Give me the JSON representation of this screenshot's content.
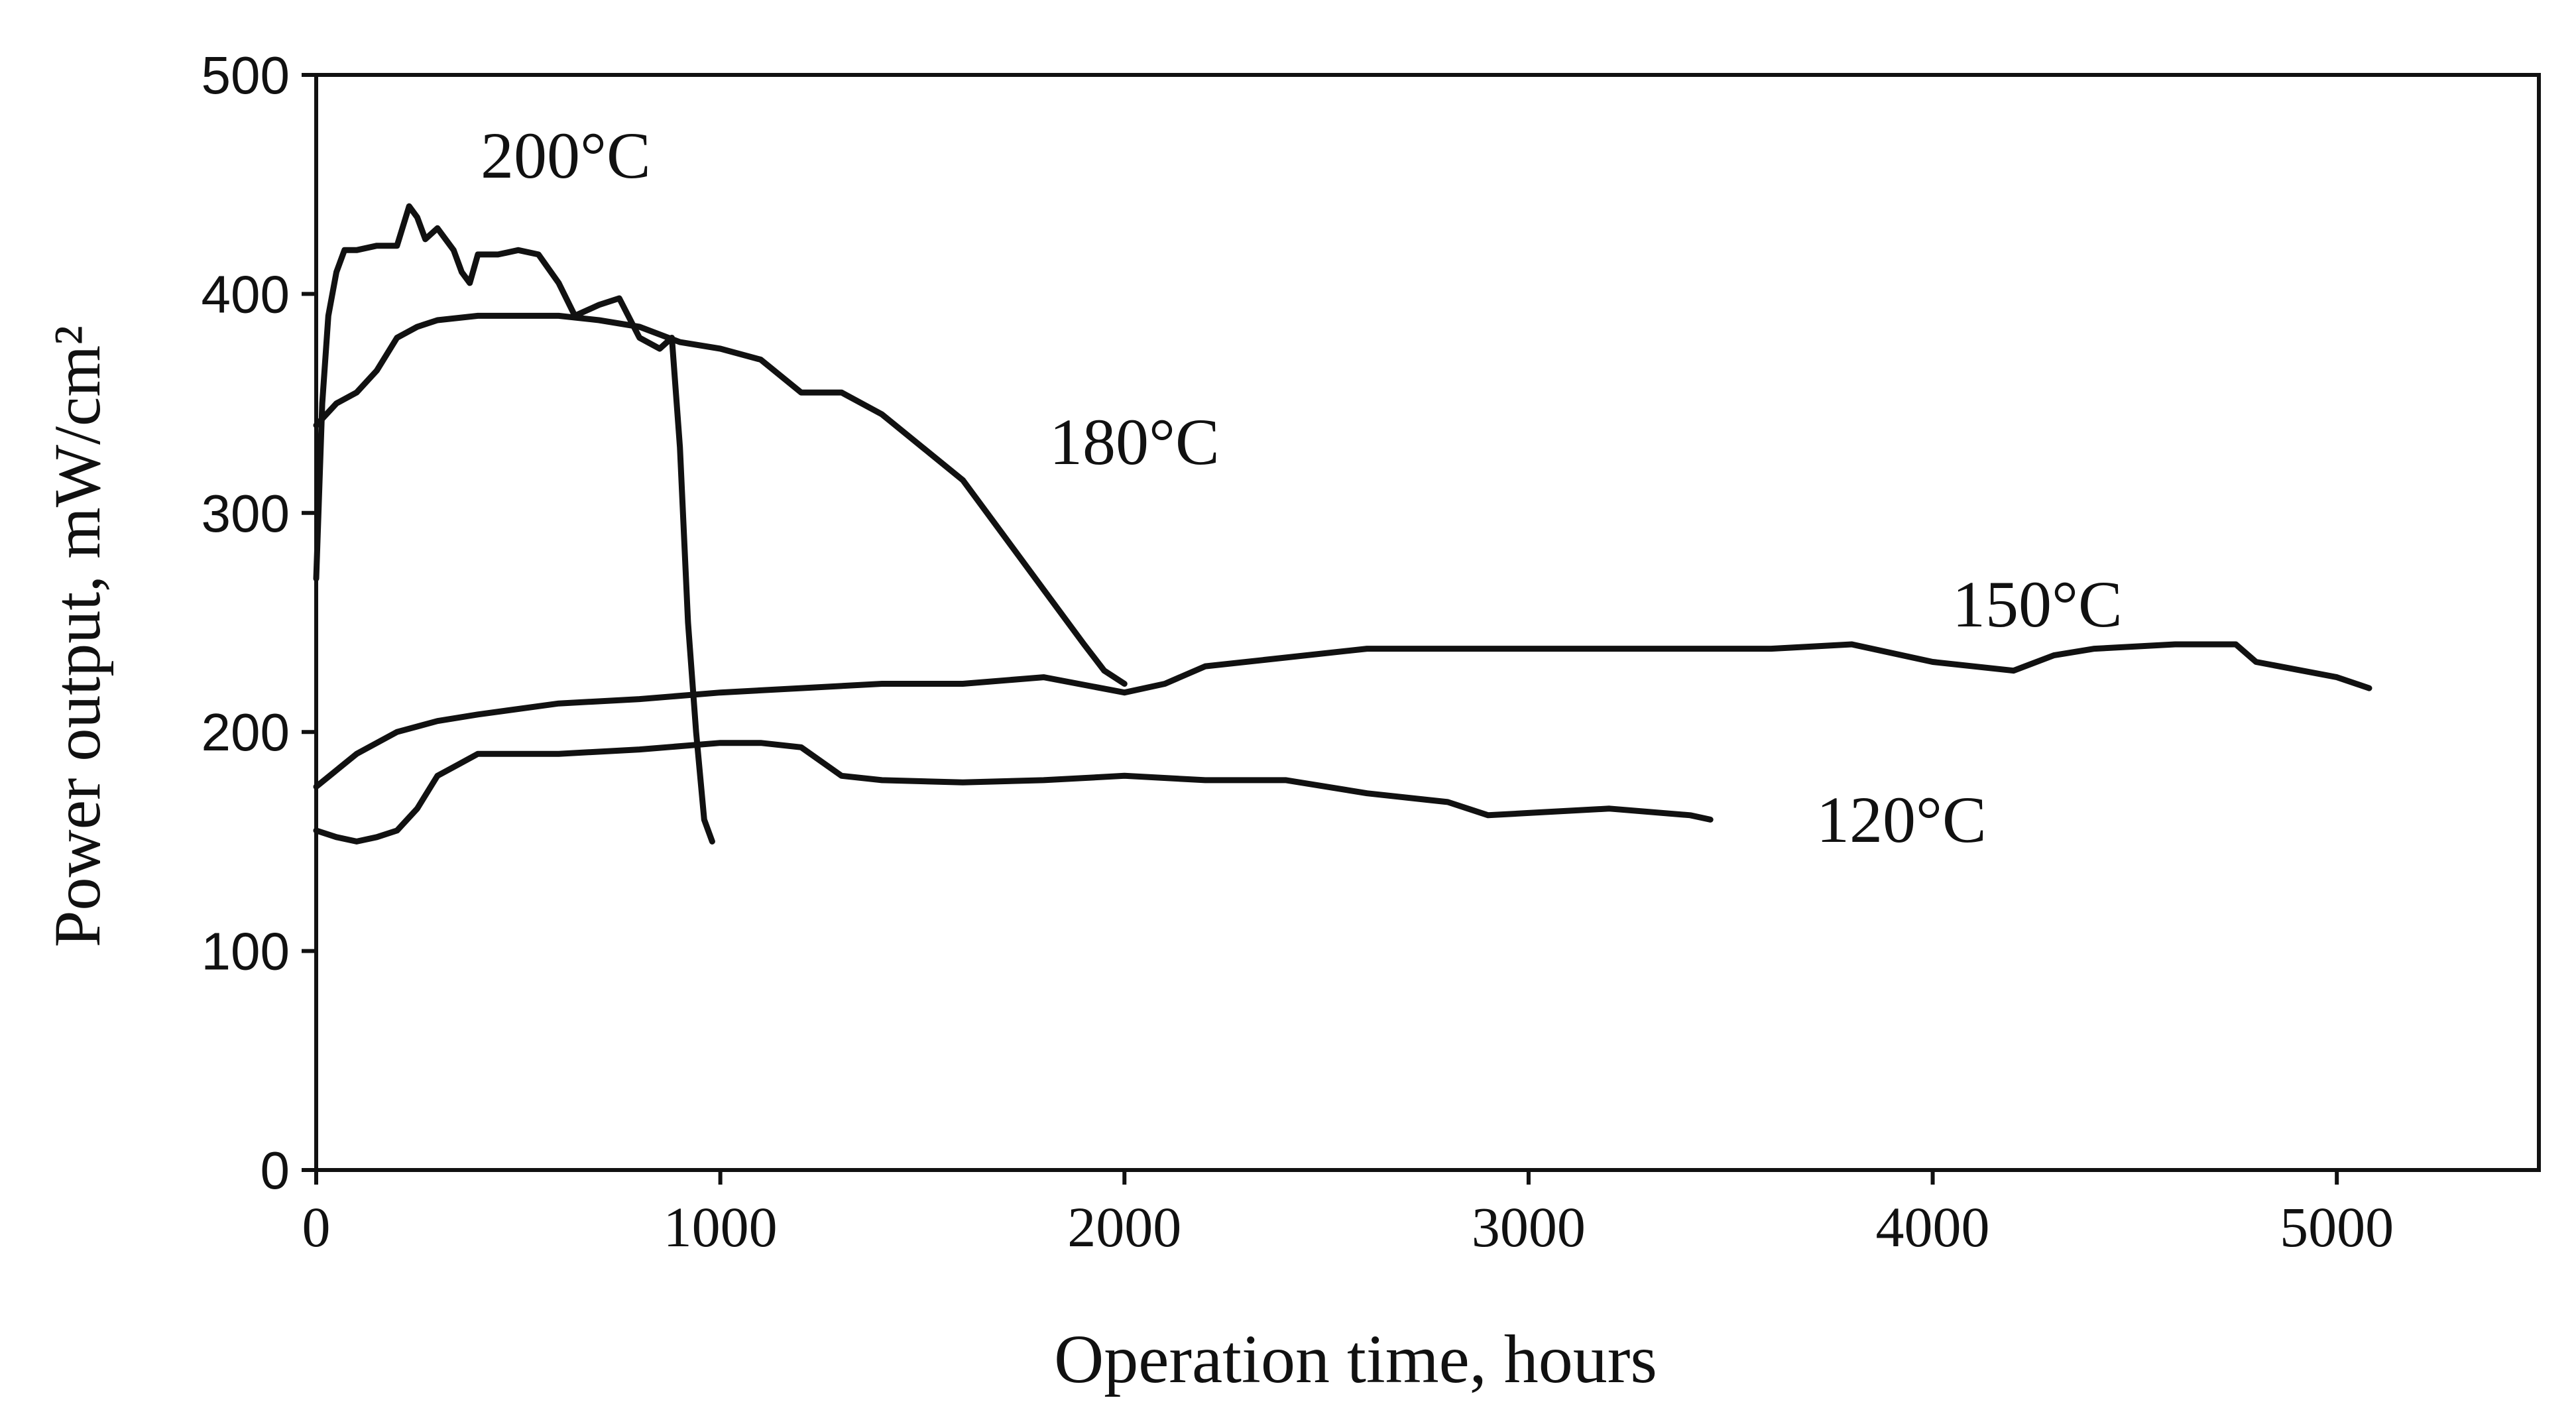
{
  "chart_data": {
    "type": "line",
    "title": "",
    "xlabel": "Operation time, hours",
    "ylabel": "Power output, mW/cm²",
    "xlim": [
      0,
      5500
    ],
    "ylim": [
      0,
      500
    ],
    "xticks": [
      0,
      1000,
      2000,
      3000,
      4000,
      5000
    ],
    "yticks": [
      0,
      100,
      200,
      300,
      400,
      500
    ],
    "grid": false,
    "series": [
      {
        "name": "200°C",
        "x": [
          0,
          15,
          30,
          50,
          70,
          100,
          150,
          200,
          230,
          250,
          270,
          300,
          340,
          360,
          380,
          400,
          450,
          500,
          550,
          600,
          640,
          700,
          750,
          800,
          850,
          880,
          900,
          920,
          940,
          960,
          980
        ],
        "y": [
          270,
          350,
          390,
          410,
          420,
          420,
          422,
          422,
          440,
          435,
          425,
          430,
          420,
          410,
          405,
          418,
          418,
          420,
          418,
          405,
          390,
          395,
          398,
          380,
          375,
          380,
          330,
          250,
          200,
          160,
          150
        ]
      },
      {
        "name": "180°C",
        "x": [
          0,
          50,
          100,
          150,
          200,
          250,
          300,
          400,
          500,
          600,
          700,
          800,
          900,
          1000,
          1100,
          1200,
          1300,
          1400,
          1500,
          1600,
          1700,
          1800,
          1900,
          1950,
          2000
        ],
        "y": [
          340,
          350,
          355,
          365,
          380,
          385,
          388,
          390,
          390,
          390,
          388,
          385,
          378,
          375,
          370,
          355,
          355,
          345,
          330,
          315,
          290,
          265,
          240,
          228,
          222
        ]
      },
      {
        "name": "150°C",
        "x": [
          0,
          100,
          200,
          300,
          400,
          600,
          800,
          1000,
          1200,
          1400,
          1600,
          1800,
          2000,
          2100,
          2200,
          2400,
          2600,
          2800,
          3000,
          3200,
          3400,
          3600,
          3800,
          4000,
          4200,
          4300,
          4400,
          4600,
          4750,
          4800,
          5000,
          5080
        ],
        "y": [
          175,
          190,
          200,
          205,
          208,
          213,
          215,
          218,
          220,
          222,
          222,
          225,
          218,
          222,
          230,
          234,
          238,
          238,
          238,
          238,
          238,
          238,
          240,
          232,
          228,
          235,
          238,
          240,
          240,
          232,
          225,
          220
        ]
      },
      {
        "name": "120°C",
        "x": [
          0,
          50,
          100,
          150,
          200,
          250,
          300,
          350,
          400,
          500,
          600,
          800,
          1000,
          1100,
          1200,
          1300,
          1400,
          1600,
          1800,
          2000,
          2200,
          2400,
          2600,
          2800,
          2900,
          3000,
          3200,
          3400,
          3450
        ],
        "y": [
          155,
          152,
          150,
          152,
          155,
          165,
          180,
          185,
          190,
          190,
          190,
          192,
          195,
          195,
          193,
          180,
          178,
          177,
          178,
          180,
          178,
          178,
          172,
          168,
          162,
          163,
          165,
          162,
          160
        ]
      }
    ],
    "annotations": [
      {
        "text": "200°C",
        "series": "200°C"
      },
      {
        "text": "180°C",
        "series": "180°C"
      },
      {
        "text": "150°C",
        "series": "150°C"
      },
      {
        "text": "120°C",
        "series": "120°C"
      }
    ]
  }
}
